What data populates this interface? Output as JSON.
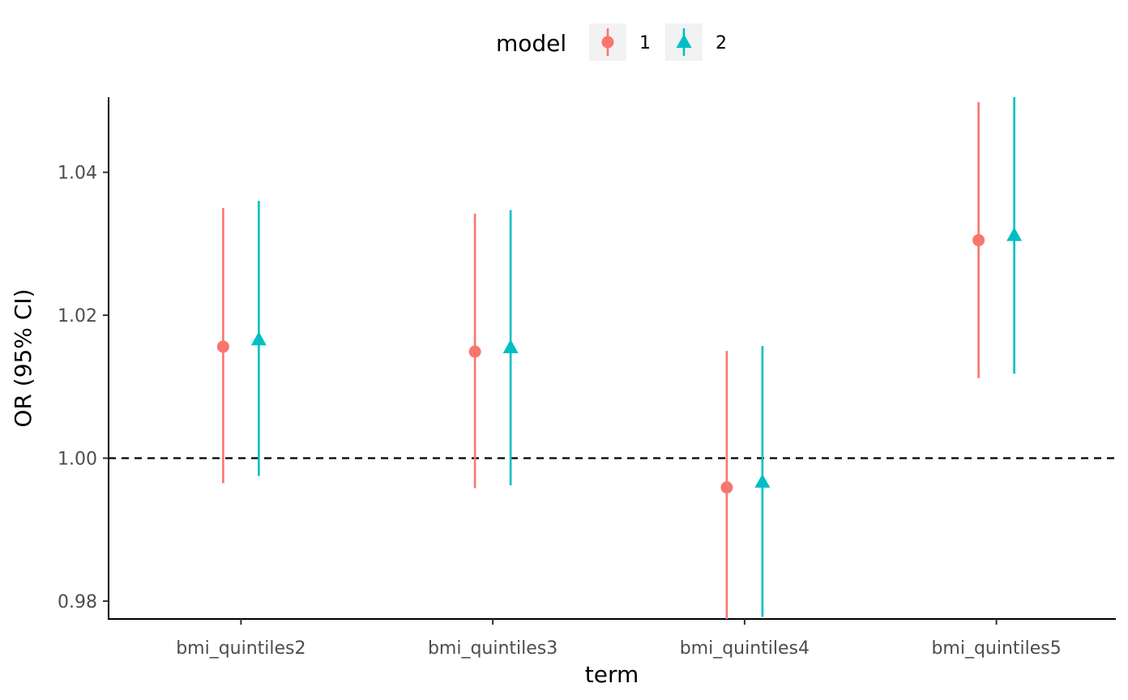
{
  "chart_data": {
    "type": "scatter",
    "xlabel": "term",
    "ylabel": "OR (95% CI)",
    "categories": [
      "bmi_quintiles2",
      "bmi_quintiles3",
      "bmi_quintiles4",
      "bmi_quintiles5"
    ],
    "ylim": [
      0.9775,
      1.0505
    ],
    "yticks": [
      0.98,
      1.0,
      1.02,
      1.04
    ],
    "ytick_labels": [
      "0.98",
      "1.00",
      "1.02",
      "1.04"
    ],
    "reference_line": 1.0,
    "legend": {
      "title": "model",
      "position": "top"
    },
    "series": [
      {
        "name": "1",
        "color": "#F8766D",
        "shape": "circle",
        "estimate": [
          1.0156,
          1.0149,
          0.9959,
          1.0305
        ],
        "lower": [
          0.9965,
          0.9958,
          0.9775,
          1.0112
        ],
        "upper": [
          1.035,
          1.0342,
          1.015,
          1.0498
        ]
      },
      {
        "name": "2",
        "color": "#00BFC4",
        "shape": "triangle",
        "estimate": [
          1.0166,
          1.0155,
          0.9967,
          1.0312
        ],
        "lower": [
          0.9975,
          0.9962,
          0.9778,
          1.0118
        ],
        "upper": [
          1.036,
          1.0347,
          1.0157,
          1.0505
        ]
      }
    ],
    "grid": false
  }
}
